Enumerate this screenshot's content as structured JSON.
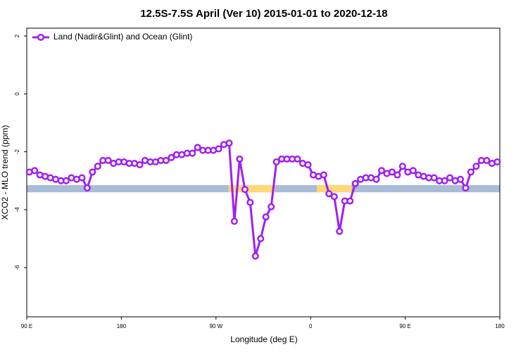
{
  "chart_data": {
    "type": "line",
    "title": "12.5S-7.5S April (Ver 10)   2015-01-01 to 2020-12-18",
    "x_label": "Longitude (deg E)",
    "y_label": "XCO2 - MLO trend (ppm)",
    "xlim": [
      90,
      540
    ],
    "ylim": [
      -7.7,
      2.27
    ],
    "xticks": [
      {
        "value": 90,
        "label": "90 E"
      },
      180,
      {
        "value": 270,
        "label": "90 W"
      },
      {
        "value": 360,
        "label": "0"
      },
      {
        "value": 450,
        "label": "90 E"
      },
      {
        "value": 540,
        "label": "180"
      }
    ],
    "yticks": [
      -6,
      -4,
      -2,
      0,
      2
    ],
    "legend": "top-left",
    "bands": [
      {
        "color": "#a9bcd8",
        "xlim": [
          90,
          540
        ],
        "ylim": [
          -3.4,
          -3.15
        ]
      },
      {
        "color": "#fdd878",
        "xlim": [
          282,
          326
        ],
        "ylim": [
          -3.4,
          -3.15
        ]
      },
      {
        "color": "#fdd878",
        "xlim": [
          366,
          399
        ],
        "ylim": [
          -3.4,
          -3.15
        ]
      }
    ],
    "x": [
      92.5,
      97.5,
      102.5,
      107.5,
      112.5,
      117.5,
      122.5,
      127.5,
      132.5,
      137.5,
      142.5,
      147.5,
      152.5,
      157.5,
      162.5,
      167.5,
      172.5,
      177.5,
      182.5,
      187.5,
      192.5,
      197.5,
      202.5,
      207.5,
      212.5,
      217.5,
      222.5,
      227.5,
      232.5,
      237.5,
      242.5,
      247.5,
      252.5,
      257.5,
      262.5,
      267.5,
      272.5,
      277.5,
      282.5,
      287.5,
      292.5,
      297.5,
      302.5,
      307.5,
      312.5,
      317.5,
      322.5,
      327.5,
      332.5,
      337.5,
      342.5,
      347.5,
      352.5,
      357.5,
      362.5,
      367.5,
      372.5,
      377.5,
      382.5,
      387.5,
      392.5,
      397.5,
      402.5,
      407.5,
      412.5,
      417.5,
      422.5,
      427.5,
      432.5,
      437.5,
      442.5,
      447.5,
      452.5,
      457.5,
      462.5,
      467.5,
      472.5,
      477.5,
      482.5,
      487.5,
      492.5,
      497.5,
      502.5,
      507.5,
      512.5,
      517.5,
      522.5,
      527.5,
      532.5,
      537.5
    ],
    "series": [
      {
        "name": "Land (Nadir&Glint) and Ocean (Glint)",
        "color": "#a020f0",
        "values": [
          -2.7,
          -2.65,
          -2.8,
          -2.85,
          -2.9,
          -2.95,
          -3.0,
          -3.0,
          -2.9,
          -2.95,
          -2.9,
          -3.25,
          -2.7,
          -2.5,
          -2.3,
          -2.3,
          -2.4,
          -2.35,
          -2.35,
          -2.4,
          -2.4,
          -2.45,
          -2.3,
          -2.35,
          -2.35,
          -2.3,
          -2.3,
          -2.2,
          -2.1,
          -2.1,
          -2.05,
          -2.05,
          -1.85,
          -1.95,
          -1.95,
          -1.95,
          -1.9,
          -1.75,
          -1.7,
          -4.4,
          -2.25,
          -3.3,
          -3.75,
          -5.6,
          -5.0,
          -4.25,
          -3.9,
          -2.35,
          -2.25,
          -2.25,
          -2.25,
          -2.25,
          -2.4,
          -2.45,
          -2.8,
          -2.85,
          -2.8,
          -3.45,
          -3.55,
          -4.75,
          -3.7,
          -3.7,
          -3.1,
          -2.95,
          -2.9,
          -2.9,
          -2.95,
          -2.65,
          -2.75,
          -2.7,
          -2.8,
          -2.5,
          -2.7,
          -2.65,
          -2.8,
          -2.85,
          -2.9,
          -2.9,
          -3.0,
          -3.0,
          -2.9,
          -3.0,
          -2.95,
          -3.25,
          -2.7,
          -2.5,
          -2.3,
          -2.3,
          -2.4,
          -2.35
        ]
      }
    ]
  }
}
